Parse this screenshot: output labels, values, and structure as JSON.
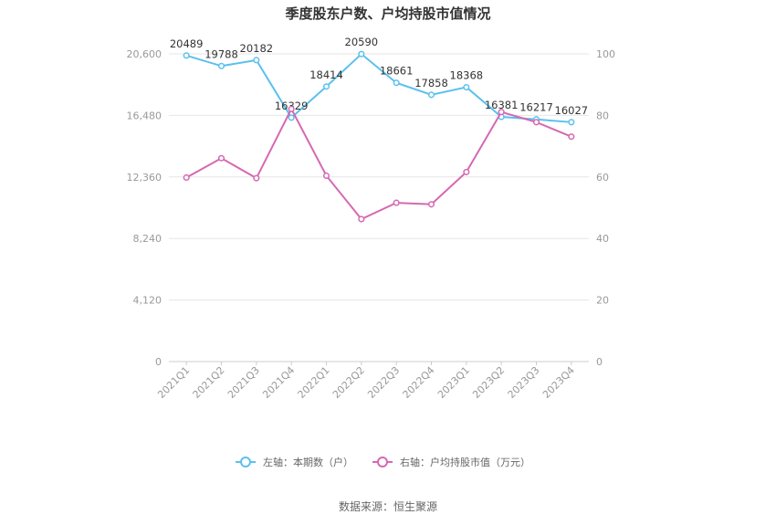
{
  "chart_data": {
    "type": "line",
    "title": "季度股东户数、户均持股市值情况",
    "categories": [
      "2021Q1",
      "2021Q2",
      "2021Q3",
      "2021Q4",
      "2022Q1",
      "2022Q2",
      "2022Q3",
      "2022Q4",
      "2023Q1",
      "2023Q2",
      "2023Q3",
      "2023Q4"
    ],
    "y_left": {
      "ylim": [
        0,
        20600
      ],
      "ticks": [
        "0",
        "4,120",
        "8,240",
        "12,360",
        "16,480",
        "20,600"
      ]
    },
    "y_right": {
      "ylim": [
        0,
        100
      ],
      "ticks": [
        "0",
        "20",
        "40",
        "60",
        "80",
        "100"
      ]
    },
    "series": [
      {
        "name": "左轴：本期数（户）",
        "axis": "left",
        "color": "#5bc0ee",
        "values": [
          20489,
          19788,
          20182,
          16329,
          18414,
          20590,
          18661,
          17858,
          18368,
          16381,
          16217,
          16027
        ],
        "labels": [
          "20489",
          "19788",
          "20182",
          "16329",
          "18414",
          "20590",
          "18661",
          "17858",
          "18368",
          "16381",
          "16217",
          "16027"
        ]
      },
      {
        "name": "右轴：户均持股市值（万元）",
        "axis": "right",
        "color": "#d668b1",
        "values": [
          59.8,
          66.1,
          59.6,
          82.1,
          60.4,
          46.3,
          51.6,
          51.1,
          61.6,
          81.1,
          77.8,
          73.1
        ]
      }
    ],
    "grid": true,
    "legend_position": "bottom"
  },
  "source": "数据来源：恒生聚源"
}
